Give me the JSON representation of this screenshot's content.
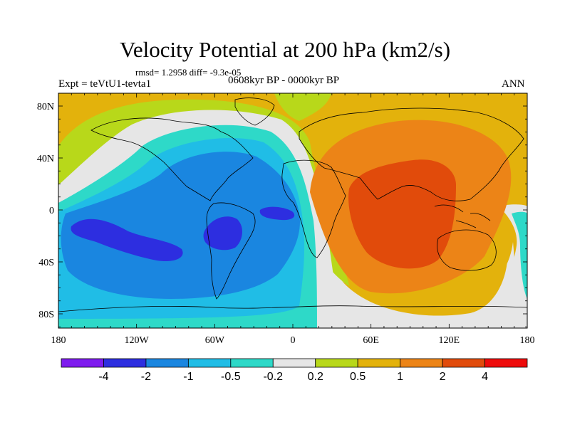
{
  "title": "Velocity Potential at 200 hPa (km2/s)",
  "stats_line": "rmsd= 1.2958 diff= -9.3e-05",
  "left_label": "Expt = teVtU1-tevta1",
  "center_label": "0608kyr BP - 0000kyr BP",
  "right_label": "ANN",
  "lat_labels": [
    "80N",
    "40N",
    "0",
    "40S",
    "80S"
  ],
  "lon_labels": [
    "180",
    "120W",
    "60W",
    "0",
    "60E",
    "120E",
    "180"
  ],
  "colorbar": {
    "labels": [
      "-4",
      "-2",
      "-1",
      "-0.5",
      "-0.2",
      "0.2",
      "0.5",
      "1",
      "2",
      "4"
    ],
    "colors": [
      "#7e1bee",
      "#2d2ee0",
      "#1a86e0",
      "#20bde6",
      "#2ed9c8",
      "#e6e6e6",
      "#b8d81a",
      "#e3b20c",
      "#ec8417",
      "#e14b0b",
      "#ee0b0b"
    ]
  }
}
